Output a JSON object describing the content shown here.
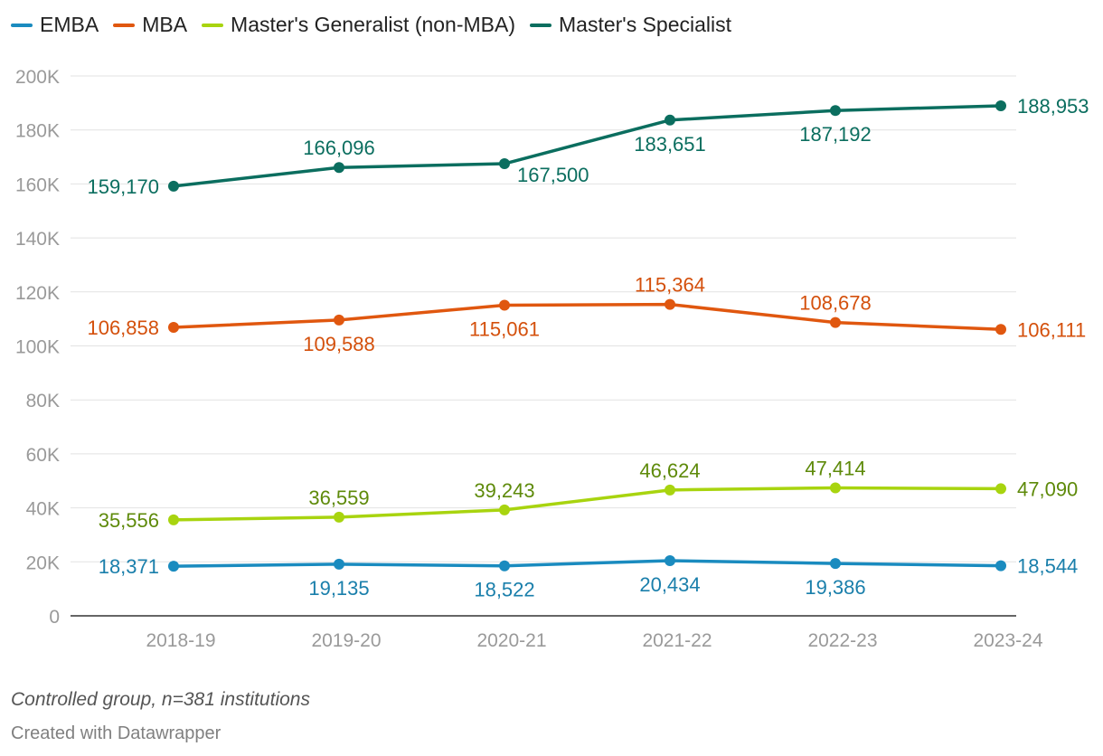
{
  "chart_data": {
    "type": "line",
    "x": [
      "2018-19",
      "2019-20",
      "2020-21",
      "2021-22",
      "2022-23",
      "2023-24"
    ],
    "ylim": [
      0,
      200000
    ],
    "yticks": [
      {
        "value": 0,
        "label": "0"
      },
      {
        "value": 20000,
        "label": "20K"
      },
      {
        "value": 40000,
        "label": "40K"
      },
      {
        "value": 60000,
        "label": "60K"
      },
      {
        "value": 80000,
        "label": "80K"
      },
      {
        "value": 100000,
        "label": "100K"
      },
      {
        "value": 120000,
        "label": "120K"
      },
      {
        "value": 140000,
        "label": "140K"
      },
      {
        "value": 160000,
        "label": "160K"
      },
      {
        "value": 180000,
        "label": "180K"
      },
      {
        "value": 200000,
        "label": "200K"
      }
    ],
    "grid": true,
    "legend": "top-left",
    "series": [
      {
        "name": "EMBA",
        "color": "#1a8bbf",
        "label_color": "#1a7fab",
        "values": [
          18371,
          19135,
          18522,
          20434,
          19386,
          18544
        ],
        "labels": [
          "18,371",
          "19,135",
          "18,522",
          "20,434",
          "19,386",
          "18,544"
        ],
        "label_positions": [
          "left",
          "below",
          "below",
          "below",
          "below",
          "right"
        ]
      },
      {
        "name": "MBA",
        "color": "#e0570f",
        "label_color": "#d4500c",
        "values": [
          106858,
          109588,
          115061,
          115364,
          108678,
          106111
        ],
        "labels": [
          "106,858",
          "109,588",
          "115,061",
          "115,364",
          "108,678",
          "106,111"
        ],
        "label_positions": [
          "left",
          "below",
          "below",
          "above",
          "above",
          "right"
        ]
      },
      {
        "name": "Master's Generalist (non-MBA)",
        "color": "#a8d40f",
        "label_color": "#5e8a0a",
        "values": [
          35556,
          36559,
          39243,
          46624,
          47414,
          47090
        ],
        "labels": [
          "35,556",
          "36,559",
          "39,243",
          "46,624",
          "47,414",
          "47,090"
        ],
        "label_positions": [
          "left",
          "above",
          "above",
          "above",
          "above",
          "right"
        ]
      },
      {
        "name": "Master's Specialist",
        "color": "#0b6e5f",
        "label_color": "#0b6e5f",
        "values": [
          159170,
          166096,
          167500,
          183651,
          187192,
          188953
        ],
        "labels": [
          "159,170",
          "166,096",
          "167,500",
          "183,651",
          "187,192",
          "188,953"
        ],
        "label_positions": [
          "left",
          "above",
          "below-right",
          "below",
          "below",
          "right"
        ]
      }
    ]
  },
  "notes": "Controlled group, n=381 institutions",
  "credit": "Created with Datawrapper"
}
